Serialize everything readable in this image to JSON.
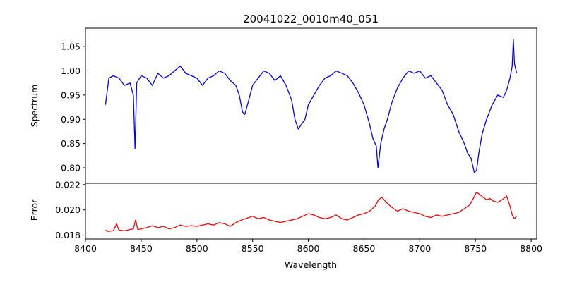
{
  "title": "20041022_0010m40_051",
  "chart_data": [
    {
      "type": "line",
      "panel": "top",
      "title": "20041022_0010m40_051",
      "xlabel": "",
      "ylabel": "Spectrum",
      "xlim": [
        8400,
        8805
      ],
      "ylim": [
        0.768,
        1.088
      ],
      "yticks": [
        "0.80",
        "0.85",
        "0.90",
        "0.95",
        "1.00",
        "1.05"
      ],
      "grid": false,
      "legend": "none",
      "series": [
        {
          "color": "#0000ff",
          "x": [
            8418,
            8421,
            8425,
            8430,
            8435,
            8440,
            8443,
            8444.5,
            8446,
            8450,
            8455,
            8460,
            8465,
            8470,
            8475,
            8480,
            8485,
            8490,
            8495,
            8500,
            8505,
            8510,
            8515,
            8520,
            8525,
            8530,
            8535,
            8538,
            8541,
            8543,
            8546,
            8550,
            8555,
            8560,
            8565,
            8570,
            8575,
            8580,
            8585,
            8588,
            8591,
            8594,
            8597,
            8600,
            8605,
            8610,
            8615,
            8620,
            8625,
            8630,
            8635,
            8640,
            8645,
            8650,
            8655,
            8658,
            8661,
            8662.5,
            8665,
            8668,
            8671,
            8675,
            8680,
            8685,
            8690,
            8695,
            8700,
            8705,
            8710,
            8715,
            8720,
            8725,
            8730,
            8735,
            8740,
            8743,
            8746,
            8749,
            8751,
            8753,
            8756,
            8760,
            8765,
            8770,
            8775,
            8778,
            8781,
            8783,
            8784,
            8785,
            8787
          ],
          "y": [
            0.93,
            0.985,
            0.99,
            0.985,
            0.97,
            0.975,
            0.95,
            0.84,
            0.975,
            0.99,
            0.985,
            0.97,
            0.995,
            0.985,
            0.99,
            1.0,
            1.01,
            0.995,
            0.99,
            0.985,
            0.97,
            0.985,
            0.99,
            1.0,
            0.995,
            0.98,
            0.97,
            0.95,
            0.915,
            0.91,
            0.935,
            0.97,
            0.985,
            1.0,
            0.995,
            0.98,
            0.99,
            0.97,
            0.94,
            0.9,
            0.88,
            0.89,
            0.9,
            0.93,
            0.95,
            0.97,
            0.985,
            0.99,
            1.0,
            0.995,
            0.99,
            0.975,
            0.955,
            0.93,
            0.89,
            0.86,
            0.845,
            0.8,
            0.85,
            0.88,
            0.9,
            0.935,
            0.965,
            0.985,
            1.0,
            0.995,
            1.0,
            0.985,
            0.99,
            0.975,
            0.96,
            0.93,
            0.91,
            0.875,
            0.85,
            0.83,
            0.82,
            0.79,
            0.795,
            0.83,
            0.87,
            0.9,
            0.93,
            0.95,
            0.945,
            0.96,
            0.985,
            1.01,
            1.065,
            1.015,
            0.995
          ]
        }
      ]
    },
    {
      "type": "line",
      "panel": "bottom",
      "xlabel": "Wavelength",
      "ylabel": "Error",
      "xlim": [
        8400,
        8805
      ],
      "ylim": [
        0.0177,
        0.0221
      ],
      "xticks": [
        "8400",
        "8450",
        "8500",
        "8550",
        "8600",
        "8650",
        "8700",
        "8750",
        "8800"
      ],
      "yticks": [
        "0.018",
        "0.020",
        "0.022"
      ],
      "grid": false,
      "legend": "none",
      "series": [
        {
          "color": "#ff0000",
          "x": [
            8418,
            8420,
            8425,
            8428,
            8430,
            8435,
            8440,
            8443,
            8445,
            8447,
            8450,
            8455,
            8460,
            8465,
            8470,
            8475,
            8480,
            8485,
            8490,
            8495,
            8500,
            8505,
            8510,
            8515,
            8520,
            8525,
            8530,
            8535,
            8540,
            8545,
            8550,
            8555,
            8560,
            8565,
            8570,
            8575,
            8580,
            8585,
            8590,
            8595,
            8600,
            8605,
            8610,
            8615,
            8620,
            8625,
            8630,
            8635,
            8640,
            8645,
            8650,
            8655,
            8660,
            8663,
            8666,
            8670,
            8675,
            8680,
            8685,
            8690,
            8695,
            8700,
            8705,
            8710,
            8715,
            8720,
            8725,
            8730,
            8735,
            8740,
            8745,
            8748,
            8751,
            8754,
            8757,
            8760,
            8763,
            8766,
            8770,
            8774,
            8778,
            8781,
            8783,
            8785,
            8787
          ],
          "y": [
            0.0184,
            0.0183,
            0.01835,
            0.0189,
            0.0184,
            0.01835,
            0.01845,
            0.0185,
            0.0192,
            0.01845,
            0.0185,
            0.0186,
            0.01875,
            0.0186,
            0.0187,
            0.0185,
            0.0186,
            0.0188,
            0.0187,
            0.01875,
            0.0187,
            0.0188,
            0.0189,
            0.0188,
            0.019,
            0.0189,
            0.0187,
            0.019,
            0.0192,
            0.01935,
            0.0195,
            0.0193,
            0.0194,
            0.0192,
            0.0191,
            0.019,
            0.0191,
            0.0192,
            0.0193,
            0.0195,
            0.0197,
            0.0196,
            0.0194,
            0.0193,
            0.0194,
            0.0196,
            0.0193,
            0.0192,
            0.0194,
            0.0196,
            0.0197,
            0.0199,
            0.0203,
            0.0208,
            0.021,
            0.0206,
            0.0202,
            0.0199,
            0.0201,
            0.0199,
            0.0198,
            0.0197,
            0.0195,
            0.0194,
            0.0196,
            0.0195,
            0.0196,
            0.0197,
            0.0198,
            0.0201,
            0.0204,
            0.0209,
            0.0214,
            0.0212,
            0.021,
            0.0208,
            0.0209,
            0.0207,
            0.0206,
            0.0208,
            0.0211,
            0.0203,
            0.0196,
            0.0193,
            0.0195
          ]
        }
      ]
    }
  ]
}
